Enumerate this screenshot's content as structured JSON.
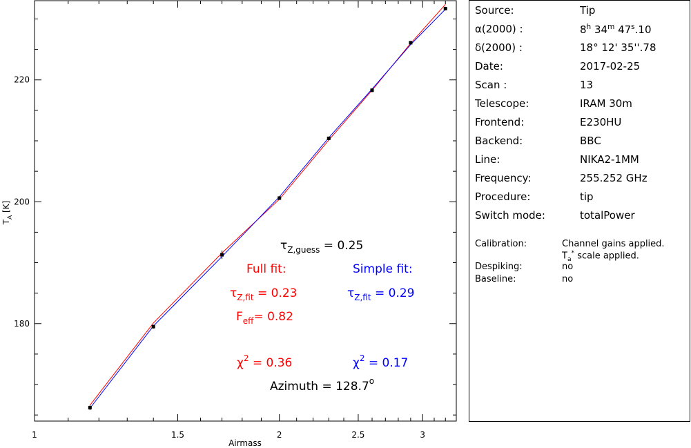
{
  "chart_data": {
    "type": "scatter",
    "xscale": "log",
    "xlim": [
      1,
      3.3
    ],
    "ylim": [
      164,
      233
    ],
    "xticks": [
      1,
      1.5,
      2,
      2.5,
      3
    ],
    "xtick_labels": [
      "1",
      "1.5",
      "2",
      "2.5",
      "3"
    ],
    "yticks": [
      180,
      200,
      220
    ],
    "ytick_labels": [
      "180",
      "200",
      "220"
    ],
    "xlabel": "Airmass",
    "ylabel": "T",
    "ylabel_sub": "A",
    "ylabel_unit": " [K]",
    "points": [
      {
        "x": 1.17,
        "y": 166.2,
        "err": 0.4
      },
      {
        "x": 1.4,
        "y": 179.5,
        "err": 0.3
      },
      {
        "x": 1.7,
        "y": 191.3,
        "err": 0.7
      },
      {
        "x": 2.0,
        "y": 200.6,
        "err": 0.3
      },
      {
        "x": 2.3,
        "y": 210.4,
        "err": 0.3
      },
      {
        "x": 2.6,
        "y": 218.3,
        "err": 0.3
      },
      {
        "x": 2.9,
        "y": 226.1,
        "err": 0.3
      },
      {
        "x": 3.2,
        "y": 231.7,
        "err": 0.3
      }
    ],
    "fits": [
      {
        "color": "#ff0000",
        "points": [
          [
            1.17,
            166.6
          ],
          [
            1.4,
            180.1
          ],
          [
            1.7,
            191.6
          ],
          [
            2.0,
            200.4
          ],
          [
            2.3,
            210.1
          ],
          [
            2.6,
            218.3
          ],
          [
            2.9,
            226.0
          ],
          [
            3.2,
            232.4
          ]
        ]
      },
      {
        "color": "#0000ff",
        "points": [
          [
            1.17,
            166.1
          ],
          [
            1.4,
            179.6
          ],
          [
            1.7,
            191.0
          ],
          [
            2.0,
            200.8
          ],
          [
            2.3,
            210.5
          ],
          [
            2.6,
            218.5
          ],
          [
            2.9,
            225.8
          ],
          [
            3.2,
            231.6
          ]
        ]
      }
    ],
    "annotations": {
      "tau_guess": {
        "sym": "τ",
        "sub": "Z,guess",
        "text": " = 0.25",
        "color": "#000000"
      },
      "full_title": {
        "text": "Full fit:",
        "color": "#ff0000"
      },
      "simple_title": {
        "text": "Simple fit:",
        "color": "#0000ff"
      },
      "tau_full": {
        "sym": "τ",
        "sub": "Z,fit",
        "text": " = 0.23",
        "color": "#ff0000"
      },
      "tau_simple": {
        "sym": "τ",
        "sub": "Z,fit",
        "text": " = 0.29",
        "color": "#0000ff"
      },
      "feff": {
        "sym": "F",
        "sub": "eff",
        "text": "= 0.82",
        "color": "#ff0000"
      },
      "chi_full": {
        "sym": "χ",
        "sup": "2",
        "text": " = 0.36",
        "color": "#ff0000"
      },
      "chi_simple": {
        "sym": "χ",
        "sup": "2",
        "text": " = 0.17",
        "color": "#0000ff"
      },
      "azimuth": {
        "text": "Azimuth = 128.7",
        "sup": "o",
        "color": "#000000"
      }
    }
  },
  "info": {
    "rows": [
      {
        "key": "Source:",
        "value": "Tip"
      },
      {
        "key": "α(2000) :",
        "value_parts": [
          "8",
          "h",
          " 34",
          "m",
          " 47",
          "s",
          ".10"
        ]
      },
      {
        "key": "δ(2000) :",
        "value": "18° 12' 35''.78"
      },
      {
        "key": "Date:",
        "value": "2017-02-25"
      },
      {
        "key": "Scan :",
        "value": "13"
      },
      {
        "key": "Telescope:",
        "value": "IRAM 30m"
      },
      {
        "key": "Frontend:",
        "value": "E230HU"
      },
      {
        "key": "Backend:",
        "value": "BBC"
      },
      {
        "key": "Line:",
        "value": "NIKA2-1MM"
      },
      {
        "key": "Frequency:",
        "value": "255.252 GHz"
      },
      {
        "key": "Procedure:",
        "value": "tip"
      },
      {
        "key": "Switch mode:",
        "value": "totalPower"
      }
    ],
    "calibration": {
      "key": "Calibration:",
      "line1": "Channel gains applied.",
      "line2_pre": "T",
      "line2_sub": "a",
      "line2_sup": "*",
      "line2_post": " scale applied."
    },
    "despiking": {
      "key": "Despiking:",
      "value": "no"
    },
    "baseline": {
      "key": "Baseline:",
      "value": "no"
    }
  }
}
